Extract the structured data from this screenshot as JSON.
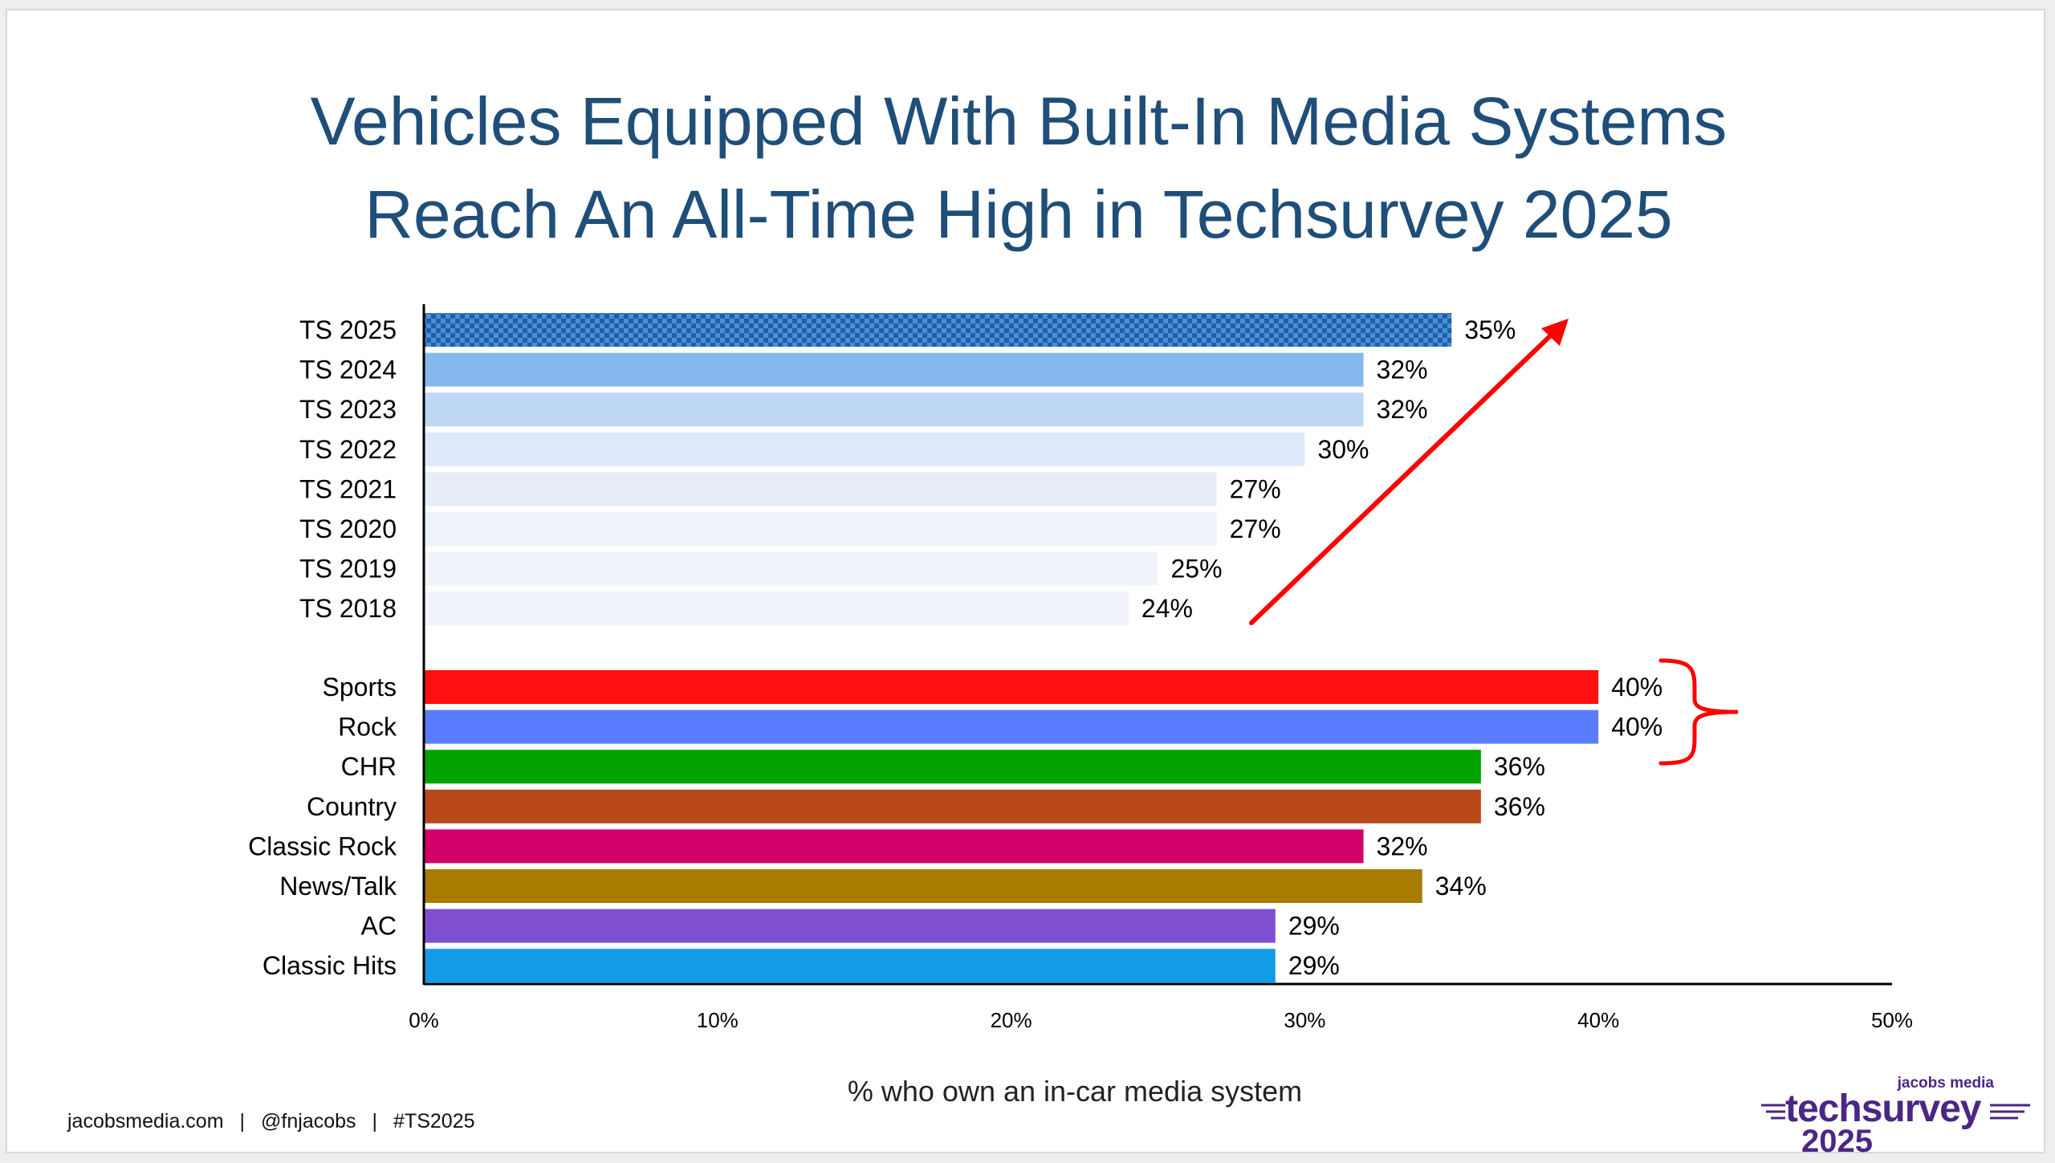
{
  "title_lines": [
    "Vehicles Equipped With Built-In Media Systems",
    "Reach An All-Time High in Techsurvey 2025"
  ],
  "footer": {
    "site": "jacobsmedia.com",
    "handle": "@fnjacobs",
    "hashtag": "#TS2025"
  },
  "logo": {
    "small_text": "jacobs media",
    "brand_text": "techsurvey",
    "year_text": "2025"
  },
  "colors": {
    "title": "#1f4e79",
    "annotation": "#ff0000",
    "logo": "#4b2785"
  },
  "chart_data": {
    "type": "bar",
    "orientation": "horizontal",
    "title": "Vehicles Equipped With Built-In Media Systems Reach An All-Time High in Techsurvey 2025",
    "xlabel": "% who own an in-car media system",
    "ylabel": "",
    "xlim": [
      0,
      50
    ],
    "x_ticks": [
      "0%",
      "10%",
      "20%",
      "30%",
      "40%",
      "50%"
    ],
    "grid": false,
    "groups": [
      {
        "name": "years",
        "categories": [
          "TS 2025",
          "TS 2024",
          "TS 2023",
          "TS 2022",
          "TS 2021",
          "TS 2020",
          "TS 2019",
          "TS 2018"
        ],
        "values": [
          35,
          32,
          32,
          30,
          27,
          27,
          25,
          24
        ],
        "value_labels": [
          "35%",
          "32%",
          "32%",
          "30%",
          "27%",
          "27%",
          "25%",
          "24%"
        ],
        "colors": [
          "#2e75b6",
          "#85b9ee",
          "#bdd7f5",
          "#deeafb",
          "#e8eef8",
          "#eef2fa",
          "#eff3fa",
          "#f0f3fa"
        ],
        "patterned": [
          true,
          false,
          false,
          false,
          false,
          false,
          false,
          false
        ]
      },
      {
        "name": "formats",
        "categories": [
          "Sports",
          "Rock",
          "CHR",
          "Country",
          "Classic Rock",
          "News/Talk",
          "AC",
          "Classic Hits"
        ],
        "values": [
          40,
          40,
          36,
          36,
          32,
          34,
          29,
          29
        ],
        "value_labels": [
          "40%",
          "40%",
          "36%",
          "36%",
          "32%",
          "34%",
          "29%",
          "29%"
        ],
        "colors": [
          "#ff0f0f",
          "#5b7cff",
          "#00a300",
          "#b9481b",
          "#d1006b",
          "#a87c00",
          "#7f4fd1",
          "#149be6"
        ],
        "patterned": [
          false,
          false,
          false,
          false,
          false,
          false,
          false,
          false
        ]
      }
    ],
    "annotations": [
      "upward-arrow",
      "curly-brace"
    ]
  }
}
